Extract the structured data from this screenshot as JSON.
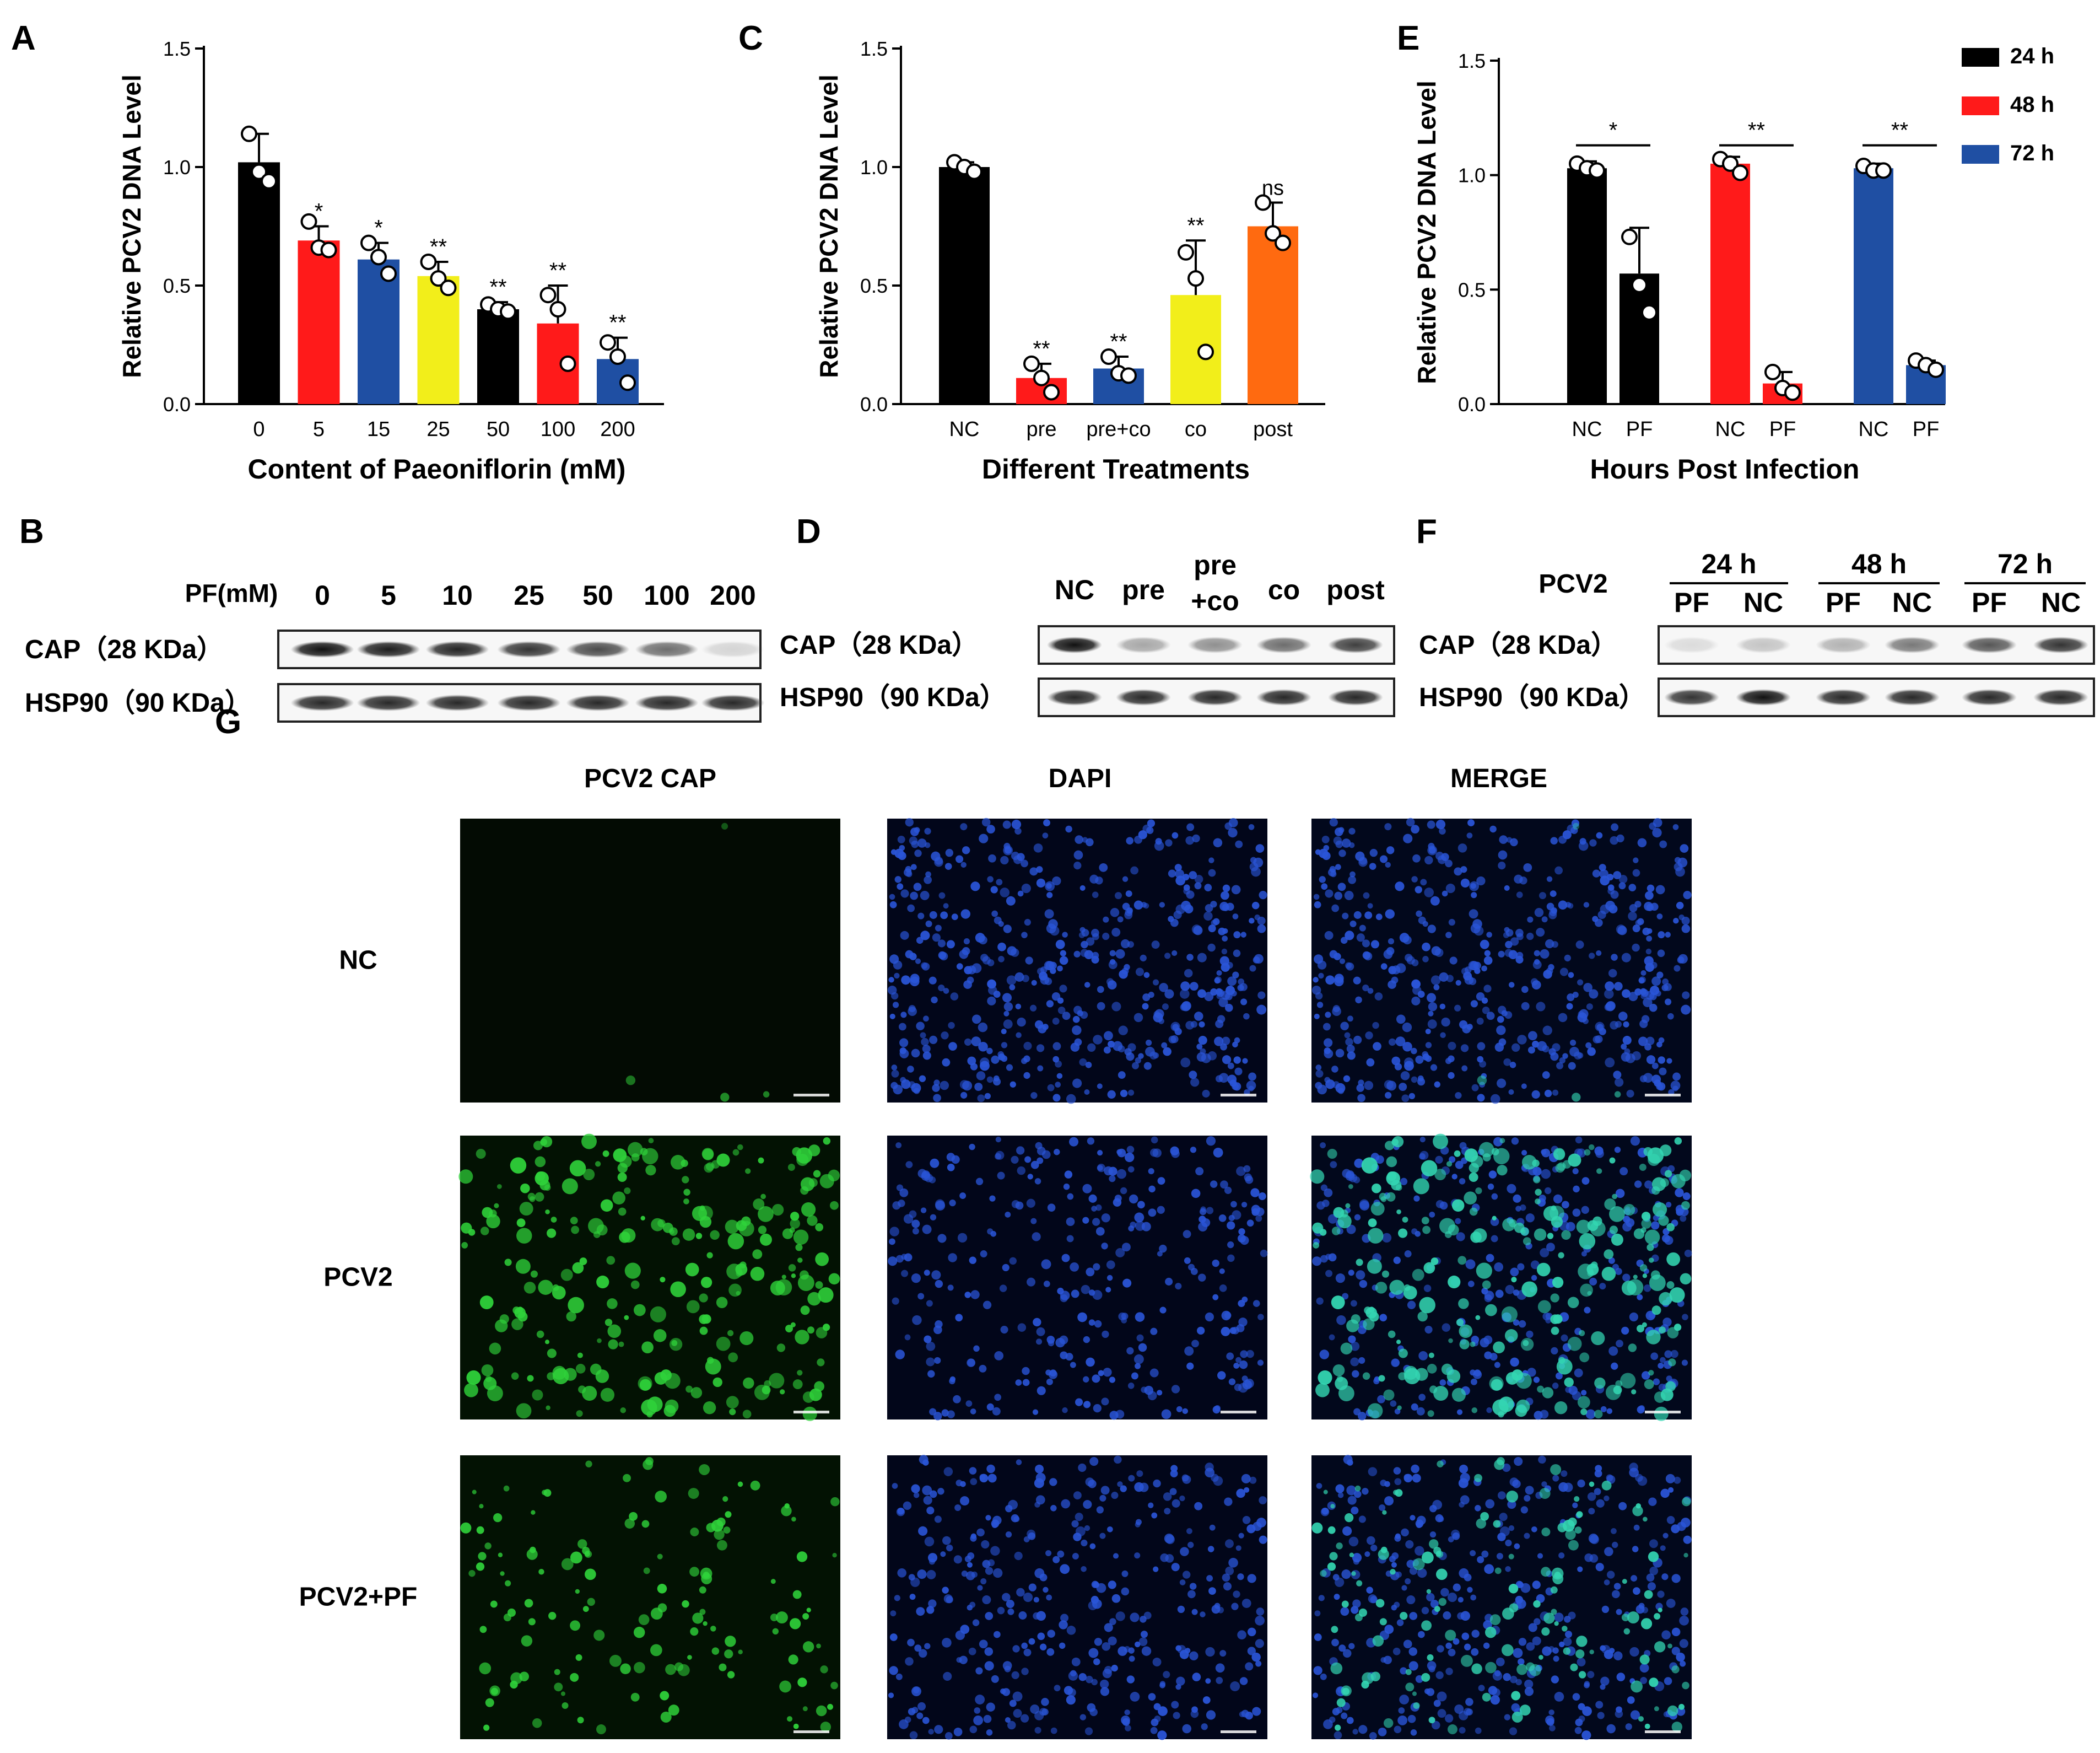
{
  "colors": {
    "black": "#000000",
    "red": "#ff1a1a",
    "blue": "#1f4fa3",
    "yellow": "#f2ee1a",
    "orange": "#ff6a10",
    "if_green": "#2fd23a",
    "if_blue": "#2a55d8",
    "if_cyan": "#33d6b2"
  },
  "panels": {
    "a": "A",
    "b": "B",
    "c": "C",
    "d": "D",
    "e": "E",
    "f": "F",
    "g": "G"
  },
  "chart_data": [
    {
      "id": "A",
      "type": "bar",
      "xlabel": "Content of Paeoniflorin (mM)",
      "ylabel": "Relative PCV2 DNA Level",
      "ylim": [
        0,
        1.5
      ],
      "yticks": [
        "0.0",
        "0.5",
        "1.0",
        "1.5"
      ],
      "grid": false,
      "categories": [
        "0",
        "5",
        "15",
        "25",
        "50",
        "100",
        "200"
      ],
      "values": [
        1.02,
        0.69,
        0.61,
        0.54,
        0.4,
        0.34,
        0.19
      ],
      "errors": [
        0.12,
        0.06,
        0.07,
        0.06,
        0.03,
        0.16,
        0.09
      ],
      "significance": [
        "",
        "*",
        "*",
        "**",
        "**",
        "**",
        "**"
      ],
      "bar_colors": [
        "#000000",
        "#ff1a1a",
        "#1f4fa3",
        "#f2ee1a",
        "#000000",
        "#ff1a1a",
        "#1f4fa3"
      ],
      "points": [
        [
          1.14,
          0.98,
          0.94
        ],
        [
          0.77,
          0.66,
          0.65
        ],
        [
          0.68,
          0.62,
          0.55
        ],
        [
          0.6,
          0.53,
          0.49
        ],
        [
          0.42,
          0.4,
          0.39
        ],
        [
          0.46,
          0.4,
          0.17
        ],
        [
          0.26,
          0.2,
          0.09
        ]
      ]
    },
    {
      "id": "C",
      "type": "bar",
      "xlabel": "Different Treatments",
      "ylabel": "Relative PCV2 DNA Level",
      "ylim": [
        0,
        1.5
      ],
      "yticks": [
        "0.0",
        "0.5",
        "1.0",
        "1.5"
      ],
      "grid": false,
      "categories": [
        "NC",
        "pre",
        "pre+co",
        "co",
        "post"
      ],
      "values": [
        1.0,
        0.11,
        0.15,
        0.46,
        0.75
      ],
      "errors": [
        0.02,
        0.06,
        0.05,
        0.23,
        0.1
      ],
      "significance": [
        "",
        "**",
        "**",
        "**",
        "ns"
      ],
      "bar_colors": [
        "#000000",
        "#ff1a1a",
        "#1f4fa3",
        "#f2ee1a",
        "#ff6a10"
      ],
      "points": [
        [
          1.02,
          1.0,
          0.98
        ],
        [
          0.17,
          0.11,
          0.05
        ],
        [
          0.2,
          0.13,
          0.12
        ],
        [
          0.64,
          0.53,
          0.22
        ],
        [
          0.85,
          0.72,
          0.68
        ]
      ]
    },
    {
      "id": "E",
      "type": "bar",
      "xlabel": "Hours Post Infection",
      "ylabel": "Relative PCV2 DNA Level",
      "ylim": [
        0,
        1.5
      ],
      "yticks": [
        "0.0",
        "0.5",
        "1.0",
        "1.5"
      ],
      "grid": false,
      "legend_position": "top-right",
      "categories": [
        "NC",
        "PF",
        "NC",
        "PF",
        "NC",
        "PF"
      ],
      "series": [
        {
          "name": "24 h",
          "color": "#000000"
        },
        {
          "name": "48 h",
          "color": "#ff1a1a"
        },
        {
          "name": "72 h",
          "color": "#1f4fa3"
        }
      ],
      "bar_series": [
        0,
        0,
        1,
        1,
        2,
        2
      ],
      "values": [
        1.03,
        0.57,
        1.05,
        0.09,
        1.03,
        0.17
      ],
      "errors": [
        0.03,
        0.2,
        0.03,
        0.05,
        0.02,
        0.02
      ],
      "points": [
        [
          1.05,
          1.03,
          1.02
        ],
        [
          0.73,
          0.52,
          0.4
        ],
        [
          1.07,
          1.05,
          1.01
        ],
        [
          0.14,
          0.07,
          0.05
        ],
        [
          1.04,
          1.02,
          1.02
        ],
        [
          0.19,
          0.17,
          0.15
        ]
      ],
      "comparisons": [
        {
          "pair": [
            0,
            1
          ],
          "label": "*"
        },
        {
          "pair": [
            2,
            3
          ],
          "label": "**"
        },
        {
          "pair": [
            4,
            5
          ],
          "label": "**"
        }
      ]
    }
  ],
  "blot_b": {
    "header_label": "PF(mM)",
    "lanes": [
      "0",
      "5",
      "10",
      "25",
      "50",
      "100",
      "200"
    ],
    "rows": [
      {
        "label": "CAP（28 KDa）",
        "intensity": [
          1.0,
          0.95,
          0.92,
          0.85,
          0.75,
          0.6,
          0.15
        ]
      },
      {
        "label": "HSP90（90 KDa）",
        "intensity": [
          0.9,
          0.9,
          0.9,
          0.9,
          0.9,
          0.9,
          0.9
        ]
      }
    ]
  },
  "blot_d": {
    "lanes": [
      "NC",
      "pre",
      "pre\n+co",
      "co",
      "post"
    ],
    "rows": [
      {
        "label": "CAP（28 KDa）",
        "intensity": [
          1.0,
          0.35,
          0.45,
          0.6,
          0.8
        ]
      },
      {
        "label": "HSP90（90 KDa）",
        "intensity": [
          0.9,
          0.9,
          0.9,
          0.9,
          0.9
        ]
      }
    ]
  },
  "blot_f": {
    "header_label": "PCV2",
    "groups": [
      "24 h",
      "48 h",
      "72 h"
    ],
    "lanes": [
      "PF",
      "NC",
      "PF",
      "NC",
      "PF",
      "NC"
    ],
    "rows": [
      {
        "label": "CAP（28 KDa）",
        "intensity": [
          0.12,
          0.22,
          0.3,
          0.55,
          0.7,
          0.85
        ]
      },
      {
        "label": "HSP90（90 KDa）",
        "intensity": [
          0.85,
          1.0,
          0.9,
          0.9,
          0.9,
          0.9
        ]
      }
    ]
  },
  "microscopy": {
    "columns": [
      "PCV2 CAP",
      "DAPI",
      "MERGE"
    ],
    "rows": [
      "NC",
      "PCV2",
      "PCV2+PF"
    ]
  }
}
